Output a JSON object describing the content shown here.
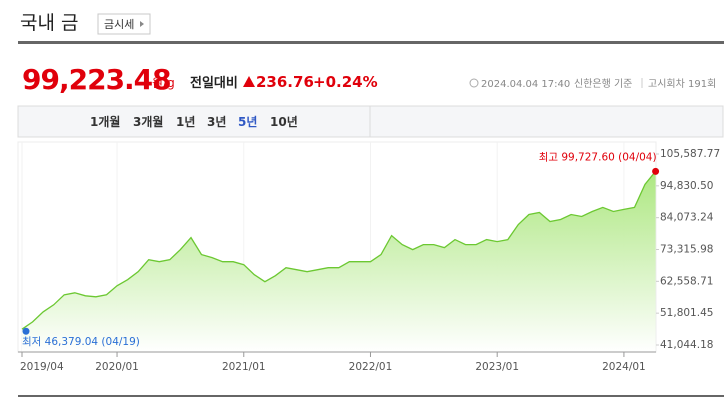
{
  "header": {
    "title": "국내 금",
    "button": "금시세"
  },
  "quote": {
    "price": "99,223.48",
    "unit": "원/g",
    "change_label": "전일대비",
    "change": "236.76",
    "change_percent": "+0.24%",
    "timestamp": "2024.04.04 17:40",
    "basis": "신한은행 기준",
    "round": "고시회차 191회"
  },
  "tabs": [
    {
      "label": "1개월",
      "selected": false
    },
    {
      "label": "3개월",
      "selected": false
    },
    {
      "label": "1년",
      "selected": false
    },
    {
      "label": "3년",
      "selected": false
    },
    {
      "label": "5년",
      "selected": true
    },
    {
      "label": "10년",
      "selected": false
    }
  ],
  "chart_data": {
    "type": "area",
    "x": [
      "2019/04",
      "2019/05",
      "2019/06",
      "2019/07",
      "2019/08",
      "2019/09",
      "2019/10",
      "2019/11",
      "2019/12",
      "2020/01",
      "2020/02",
      "2020/03",
      "2020/04",
      "2020/05",
      "2020/06",
      "2020/07",
      "2020/08",
      "2020/09",
      "2020/10",
      "2020/11",
      "2020/12",
      "2021/01",
      "2021/02",
      "2021/03",
      "2021/04",
      "2021/05",
      "2021/06",
      "2021/07",
      "2021/08",
      "2021/09",
      "2021/10",
      "2021/11",
      "2021/12",
      "2022/01",
      "2022/02",
      "2022/03",
      "2022/04",
      "2022/05",
      "2022/06",
      "2022/07",
      "2022/08",
      "2022/09",
      "2022/10",
      "2022/11",
      "2022/12",
      "2023/01",
      "2023/02",
      "2023/03",
      "2023/04",
      "2023/05",
      "2023/06",
      "2023/07",
      "2023/08",
      "2023/09",
      "2023/10",
      "2023/11",
      "2023/12",
      "2024/01",
      "2024/02",
      "2024/03",
      "2024/04"
    ],
    "values": [
      46379.04,
      48848,
      52241,
      54616,
      58009,
      58688,
      57670,
      57330,
      58009,
      61063,
      63099,
      65813,
      69885,
      69206,
      69885,
      73278,
      77349,
      71581,
      70563,
      69206,
      69206,
      68188,
      64795,
      62420,
      64456,
      67170,
      66492,
      65813,
      66492,
      67170,
      67170,
      69206,
      69206,
      69206,
      71581,
      78028,
      74974,
      73278,
      74974,
      74974,
      73956,
      76671,
      74974,
      74974,
      76671,
      75992,
      76671,
      81760,
      85153,
      85832,
      82778,
      83457,
      85153,
      84474,
      86171,
      87528,
      86171,
      86850,
      87528,
      95332,
      99727.6
    ],
    "color": "#6cc832",
    "max_label": "최고 99,727.60 (04/04)",
    "max_color": "#e0000b",
    "min_label": "최저 46,379.04 (04/19)",
    "min_color": "#2a6fd6",
    "ylim": [
      41044.18,
      105587.77
    ],
    "yticks": [
      {
        "value": 41044.18,
        "label": "41,044.18"
      },
      {
        "value": 51801.45,
        "label": "51,801.45"
      },
      {
        "value": 62558.71,
        "label": "62,558.71"
      },
      {
        "value": 73315.98,
        "label": "73,315.98"
      },
      {
        "value": 84073.24,
        "label": "84,073.24"
      },
      {
        "value": 94830.5,
        "label": "94,830.50"
      },
      {
        "value": 105587.77,
        "label": "105,587.77"
      }
    ],
    "xticks": [
      "2019/04",
      "2020/01",
      "2021/01",
      "2022/01",
      "2023/01",
      "2024/01"
    ]
  }
}
